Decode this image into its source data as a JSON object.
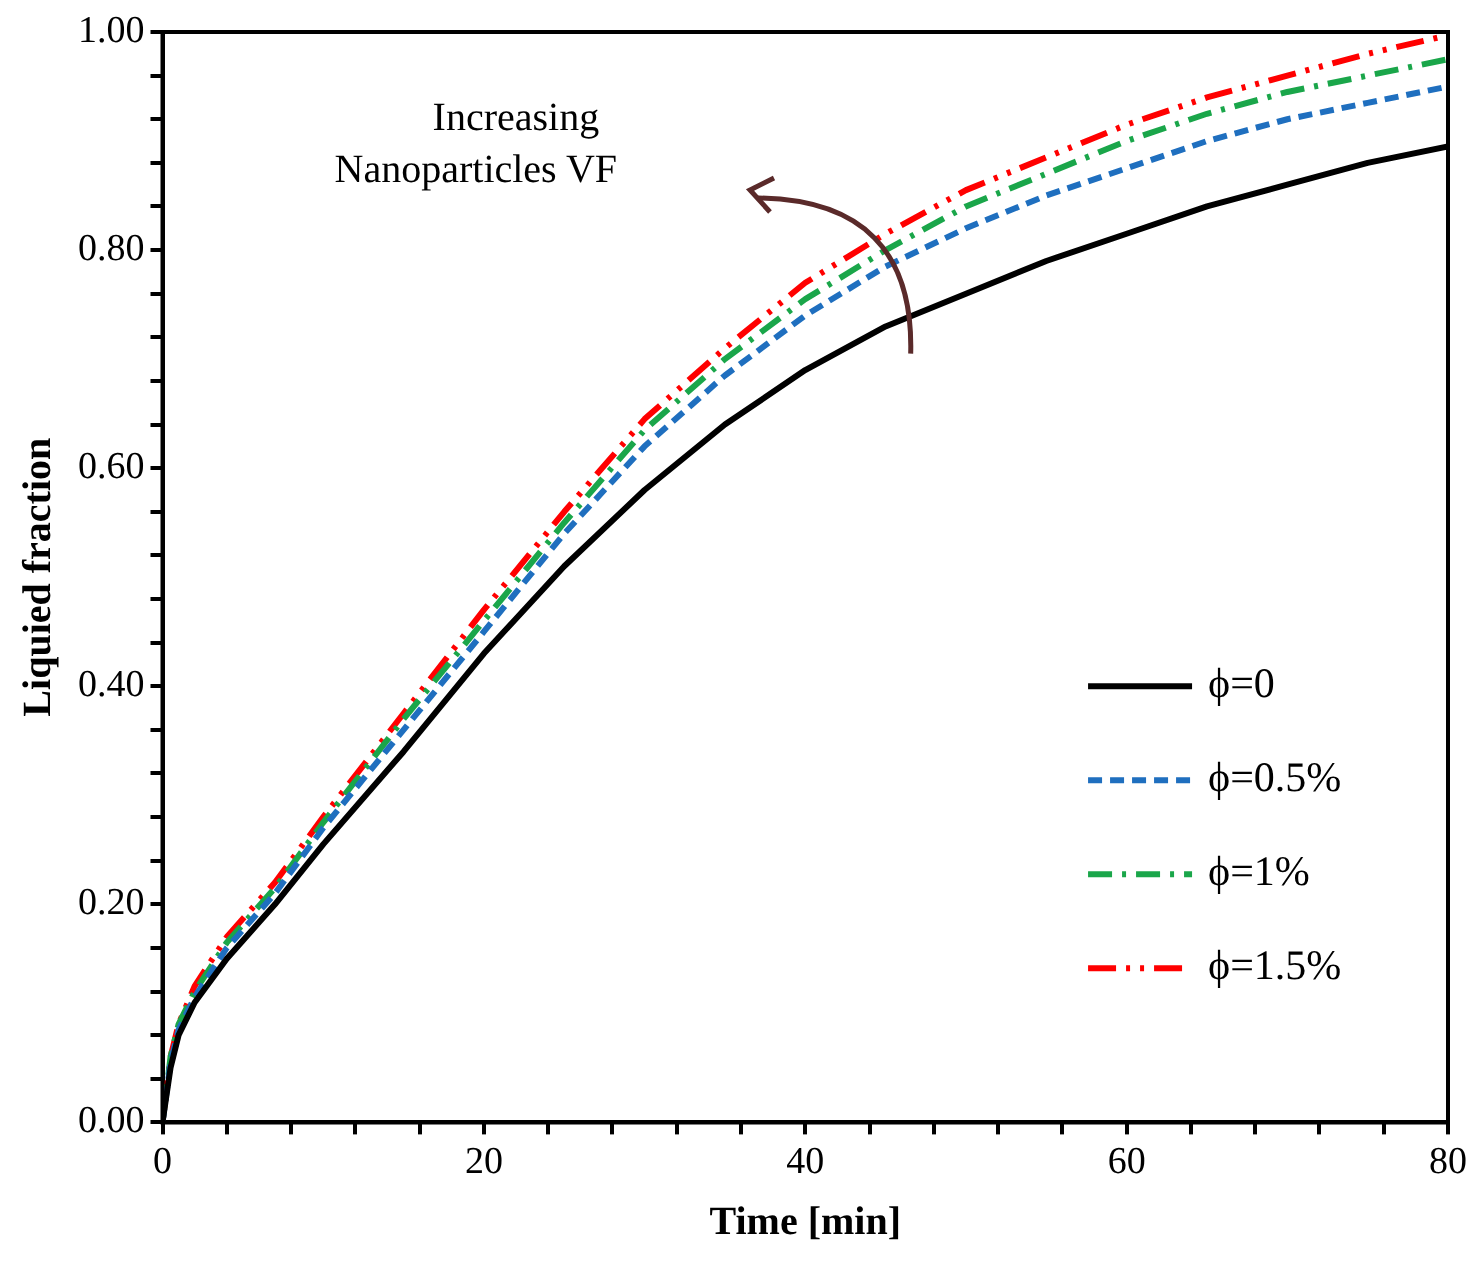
{
  "chart_data": {
    "type": "line",
    "xlabel": "Time [min]",
    "ylabel": "Liquied fraction",
    "x": [
      0,
      0.5,
      1,
      2,
      4,
      7,
      10,
      15,
      20,
      25,
      30,
      35,
      40,
      45,
      50,
      55,
      60,
      65,
      70,
      75,
      80
    ],
    "series": [
      {
        "name": "ϕ=0",
        "color": "#000000",
        "line_style": "solid",
        "values": [
          0,
          0.05,
          0.08,
          0.11,
          0.15,
          0.2,
          0.255,
          0.34,
          0.43,
          0.51,
          0.58,
          0.64,
          0.69,
          0.73,
          0.76,
          0.79,
          0.815,
          0.84,
          0.86,
          0.88,
          0.895
        ]
      },
      {
        "name": "ϕ=0.5%",
        "color": "#1f6fbf",
        "line_style": "dashed",
        "values": [
          0,
          0.055,
          0.085,
          0.115,
          0.16,
          0.21,
          0.27,
          0.36,
          0.45,
          0.54,
          0.62,
          0.685,
          0.74,
          0.785,
          0.82,
          0.85,
          0.875,
          0.9,
          0.92,
          0.935,
          0.95
        ]
      },
      {
        "name": "ϕ=1%",
        "color": "#1aa64a",
        "line_style": "dashdot",
        "values": [
          0,
          0.06,
          0.09,
          0.12,
          0.165,
          0.215,
          0.275,
          0.37,
          0.46,
          0.55,
          0.635,
          0.7,
          0.755,
          0.8,
          0.84,
          0.87,
          0.9,
          0.925,
          0.945,
          0.96,
          0.975
        ]
      },
      {
        "name": "ϕ=1.5%",
        "color": "#ff0000",
        "line_style": "dashdotdot",
        "values": [
          0,
          0.06,
          0.09,
          0.125,
          0.17,
          0.22,
          0.28,
          0.375,
          0.47,
          0.56,
          0.645,
          0.71,
          0.77,
          0.815,
          0.855,
          0.885,
          0.915,
          0.94,
          0.96,
          0.98,
          0.997
        ]
      }
    ],
    "xlim": [
      0,
      80
    ],
    "xticks": [
      0,
      {
        "value": 4,
        "label": null
      },
      {
        "value": 8,
        "label": null
      },
      {
        "value": 12,
        "label": null
      },
      {
        "value": 16,
        "label": null
      },
      20,
      {
        "value": 24,
        "label": null
      },
      {
        "value": 28,
        "label": null
      },
      {
        "value": 32,
        "label": null
      },
      {
        "value": 36,
        "label": null
      },
      40,
      {
        "value": 44,
        "label": null
      },
      {
        "value": 48,
        "label": null
      },
      {
        "value": 52,
        "label": null
      },
      {
        "value": 56,
        "label": null
      },
      60,
      {
        "value": 64,
        "label": null
      },
      {
        "value": 68,
        "label": null
      },
      {
        "value": 72,
        "label": null
      },
      {
        "value": 76,
        "label": null
      },
      80
    ],
    "ylim": [
      0,
      1
    ],
    "yticks": [
      {
        "value": 0,
        "label": "0.00"
      },
      {
        "value": 0.04,
        "label": null
      },
      {
        "value": 0.08,
        "label": null
      },
      {
        "value": 0.12,
        "label": null
      },
      {
        "value": 0.16,
        "label": null
      },
      {
        "value": 0.2,
        "label": "0.20"
      },
      {
        "value": 0.24,
        "label": null
      },
      {
        "value": 0.28,
        "label": null
      },
      {
        "value": 0.32,
        "label": null
      },
      {
        "value": 0.36,
        "label": null
      },
      {
        "value": 0.4,
        "label": "0.40"
      },
      {
        "value": 0.44,
        "label": null
      },
      {
        "value": 0.48,
        "label": null
      },
      {
        "value": 0.52,
        "label": null
      },
      {
        "value": 0.56,
        "label": null
      },
      {
        "value": 0.6,
        "label": "0.60"
      },
      {
        "value": 0.64,
        "label": null
      },
      {
        "value": 0.68,
        "label": null
      },
      {
        "value": 0.72,
        "label": null
      },
      {
        "value": 0.76,
        "label": null
      },
      {
        "value": 0.8,
        "label": "0.80"
      },
      {
        "value": 0.84,
        "label": null
      },
      {
        "value": 0.88,
        "label": null
      },
      {
        "value": 0.92,
        "label": null
      },
      {
        "value": 0.96,
        "label": null
      },
      {
        "value": 1,
        "label": "1.00"
      }
    ],
    "annotations": [
      "Increasing\nNanoparticles VF"
    ],
    "grid": false,
    "legend": "right",
    "marker": "none"
  }
}
